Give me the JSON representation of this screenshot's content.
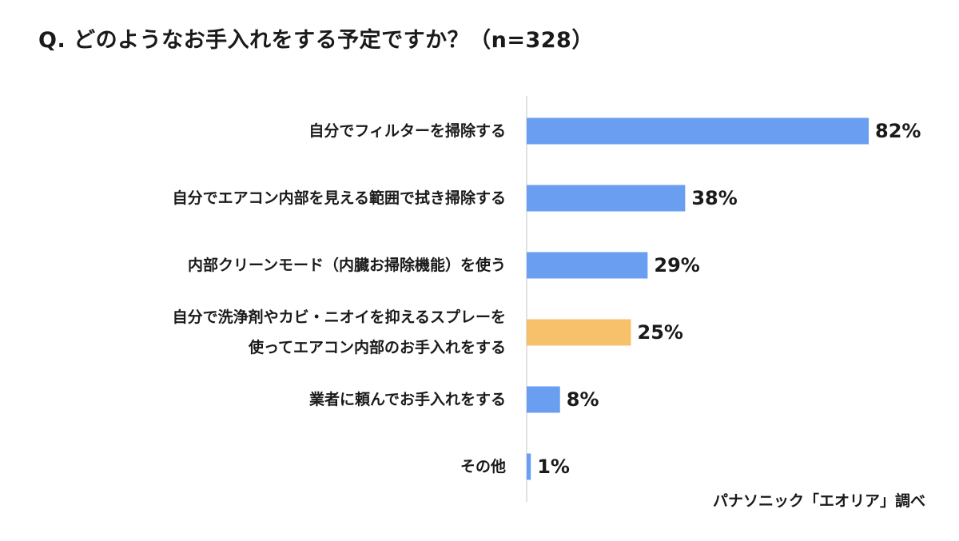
{
  "chart_data": {
    "type": "bar",
    "orientation": "horizontal",
    "title": "Q. どのようなお手入れをする予定ですか？（n=328）",
    "categories": [
      [
        "自分でフィルターを掃除する"
      ],
      [
        "自分でエアコン内部を見える範囲で拭き掃除する"
      ],
      [
        "内部クリーンモード（内臓お掃除機能）を使う"
      ],
      [
        "自分で洗浄剤やカビ・ニオイを抑えるスプレーを",
        "使ってエアコン内部のお手入れをする"
      ],
      [
        "業者に頼んでお手入れをする"
      ],
      [
        "その他"
      ]
    ],
    "values": [
      82,
      38,
      29,
      25,
      8,
      1
    ],
    "value_labels": [
      "82%",
      "38%",
      "29%",
      "25%",
      "8%",
      "1%"
    ],
    "bar_colors": [
      "#6a9ef0",
      "#6a9ef0",
      "#6a9ef0",
      "#f7c06b",
      "#6a9ef0",
      "#6a9ef0"
    ],
    "xlim": [
      0,
      100
    ],
    "grid": false,
    "legend": "none"
  },
  "source": "パナソニック「エオリア」調べ"
}
